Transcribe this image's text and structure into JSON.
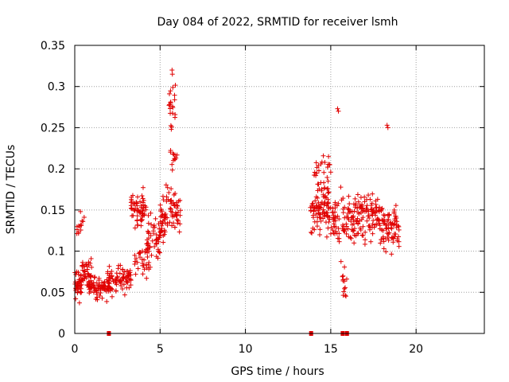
{
  "chart_data": {
    "type": "scatter",
    "title": "Day 084 of 2022, SRMTID for receiver lsmh",
    "xlabel": "GPS time / hours",
    "ylabel": "SRMTID / TECUs",
    "xlim": [
      0,
      24
    ],
    "ylim": [
      0,
      0.35
    ],
    "x_ticks": [
      0,
      5,
      10,
      15,
      20
    ],
    "x_tick_labels": [
      "0",
      "5",
      "10",
      "15",
      "20"
    ],
    "y_ticks": [
      0,
      0.05,
      0.1,
      0.15,
      0.2,
      0.25,
      0.3,
      0.35
    ],
    "y_tick_labels": [
      "0",
      "0.05",
      "0.1",
      "0.15",
      "0.2",
      "0.25",
      "0.3",
      "0.35"
    ],
    "grid": true,
    "marker": "+",
    "color": "#e00000",
    "series_name": "SRMTID",
    "point_density_model": [
      {
        "x_range": [
          0.0,
          0.4
        ],
        "y_center": 0.06,
        "y_spread": 0.03,
        "count": 40
      },
      {
        "x_range": [
          0.1,
          0.7
        ],
        "y_center": 0.13,
        "y_spread": 0.03,
        "count": 14
      },
      {
        "x_range": [
          0.4,
          1.0
        ],
        "y_center": 0.075,
        "y_spread": 0.03,
        "count": 35
      },
      {
        "x_range": [
          0.8,
          2.0
        ],
        "y_center": 0.055,
        "y_spread": 0.02,
        "count": 80
      },
      {
        "x_range": [
          1.9,
          3.3
        ],
        "y_center": 0.065,
        "y_spread": 0.022,
        "count": 80
      },
      {
        "x_range": [
          3.3,
          4.2
        ],
        "y_center": 0.15,
        "y_spread": 0.035,
        "count": 60
      },
      {
        "x_range": [
          3.5,
          4.5
        ],
        "y_center": 0.09,
        "y_spread": 0.03,
        "count": 35
      },
      {
        "x_range": [
          4.2,
          5.3
        ],
        "y_center": 0.12,
        "y_spread": 0.035,
        "count": 60
      },
      {
        "x_range": [
          5.0,
          6.2
        ],
        "y_center": 0.15,
        "y_spread": 0.035,
        "count": 70
      },
      {
        "x_range": [
          5.5,
          5.9
        ],
        "y_center": 0.28,
        "y_spread": 0.04,
        "count": 20
      },
      {
        "x_range": [
          5.6,
          6.0
        ],
        "y_center": 0.215,
        "y_spread": 0.03,
        "count": 12
      },
      {
        "x_range": [
          13.8,
          15.0
        ],
        "y_center": 0.15,
        "y_spread": 0.04,
        "count": 90
      },
      {
        "x_range": [
          14.0,
          15.0
        ],
        "y_center": 0.2,
        "y_spread": 0.03,
        "count": 25
      },
      {
        "x_range": [
          15.0,
          16.5
        ],
        "y_center": 0.14,
        "y_spread": 0.045,
        "count": 90
      },
      {
        "x_range": [
          15.6,
          16.0
        ],
        "y_center": 0.06,
        "y_spread": 0.035,
        "count": 14
      },
      {
        "x_range": [
          16.5,
          18.0
        ],
        "y_center": 0.14,
        "y_spread": 0.04,
        "count": 100
      },
      {
        "x_range": [
          18.0,
          19.0
        ],
        "y_center": 0.13,
        "y_spread": 0.04,
        "count": 70
      }
    ],
    "highlight_points": [
      {
        "x": 15.4,
        "y": 0.273
      },
      {
        "x": 15.45,
        "y": 0.27
      },
      {
        "x": 18.3,
        "y": 0.253
      },
      {
        "x": 18.35,
        "y": 0.25
      },
      {
        "x": 5.7,
        "y": 0.32
      },
      {
        "x": 5.72,
        "y": 0.315
      }
    ],
    "outage_markers_x": [
      2.0,
      13.85,
      15.7,
      15.95
    ]
  }
}
